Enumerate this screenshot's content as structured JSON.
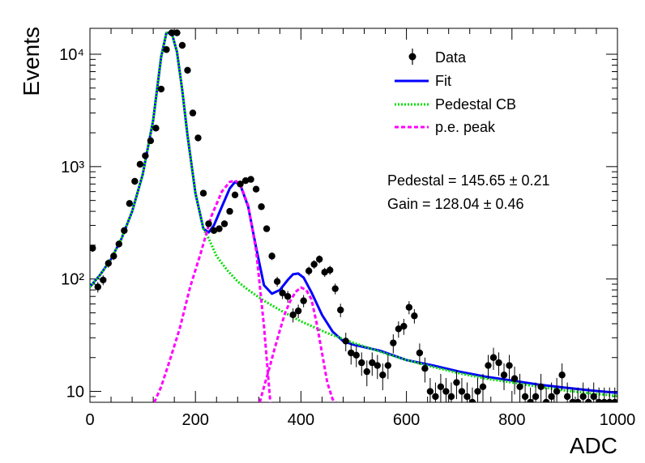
{
  "chart_data": {
    "type": "scatter",
    "title": "",
    "xlabel": "ADC",
    "ylabel": "Events",
    "xlim": [
      0,
      1000
    ],
    "ylim": [
      8,
      17000
    ],
    "yscale": "log",
    "x_ticks": [
      0,
      200,
      400,
      600,
      800,
      1000
    ],
    "y_ticks": [
      {
        "value": 10,
        "label": "10"
      },
      {
        "value": 100,
        "label": "10²"
      },
      {
        "value": 1000,
        "label": "10³"
      },
      {
        "value": 10000,
        "label": "10⁴"
      }
    ],
    "legend": {
      "position": "top-right",
      "entries": [
        {
          "label": "Data",
          "style": "marker",
          "color": "#000000"
        },
        {
          "label": "Fit",
          "style": "solid",
          "color": "#0000ff"
        },
        {
          "label": "Pedestal CB",
          "style": "dotted",
          "color": "#00dd00"
        },
        {
          "label": "p.e. peak",
          "style": "dashed",
          "color": "#ff00ff"
        }
      ]
    },
    "annotations": [
      {
        "text": "Pedestal = 145.65 ± 0.21"
      },
      {
        "text": "Gain = 128.04 ± 0.46"
      }
    ],
    "series": [
      {
        "name": "Data",
        "kind": "points",
        "color": "#000000",
        "x": [
          5,
          15,
          25,
          35,
          45,
          55,
          65,
          75,
          85,
          95,
          105,
          115,
          125,
          135,
          145,
          155,
          165,
          175,
          185,
          195,
          205,
          215,
          225,
          235,
          245,
          255,
          265,
          275,
          285,
          295,
          305,
          315,
          325,
          335,
          345,
          355,
          365,
          375,
          385,
          395,
          405,
          415,
          425,
          435,
          445,
          455,
          465,
          475,
          485,
          495,
          505,
          515,
          525,
          535,
          545,
          555,
          565,
          575,
          585,
          595,
          605,
          615,
          625,
          635,
          645,
          655,
          665,
          675,
          685,
          695,
          705,
          715,
          725,
          735,
          745,
          755,
          765,
          775,
          785,
          795,
          805,
          815,
          825,
          835,
          845,
          855,
          865,
          875,
          885,
          895,
          905,
          915,
          925,
          935,
          945,
          955,
          965,
          975,
          985,
          995
        ],
        "y": [
          188,
          85,
          98,
          138,
          160,
          205,
          270,
          470,
          740,
          1050,
          1250,
          1700,
          2200,
          4900,
          11000,
          15500,
          15500,
          12000,
          7200,
          3000,
          1800,
          580,
          310,
          270,
          280,
          310,
          400,
          560,
          700,
          750,
          770,
          630,
          440,
          280,
          160,
          95,
          75,
          70,
          48,
          52,
          64,
          118,
          135,
          150,
          115,
          120,
          82,
          53,
          28,
          22,
          21,
          18,
          15,
          18,
          17,
          14,
          17,
          27,
          36,
          38,
          56,
          47,
          22,
          16,
          10,
          9,
          11,
          10,
          9,
          12,
          10,
          9,
          8,
          10,
          11,
          17,
          20,
          18,
          14,
          17,
          13,
          11,
          9,
          8,
          9,
          11,
          8,
          9,
          10,
          14,
          9,
          8,
          8,
          9,
          8,
          9,
          8,
          8,
          8,
          8
        ]
      },
      {
        "name": "Fit",
        "kind": "curve",
        "color": "#0000ff",
        "x": [
          0,
          20,
          40,
          60,
          80,
          100,
          120,
          135,
          145,
          155,
          165,
          175,
          185,
          200,
          215,
          225,
          235,
          250,
          265,
          275,
          285,
          300,
          315,
          330,
          345,
          360,
          375,
          385,
          395,
          405,
          420,
          440,
          460,
          480,
          500,
          550,
          600,
          650,
          700,
          750,
          800,
          850,
          900,
          950,
          1000
        ],
        "y": [
          85,
          110,
          150,
          230,
          400,
          850,
          2600,
          9500,
          15500,
          15500,
          10500,
          4800,
          1900,
          580,
          280,
          260,
          300,
          440,
          640,
          730,
          690,
          440,
          190,
          88,
          74,
          80,
          98,
          110,
          112,
          103,
          76,
          48,
          34,
          28,
          26,
          23,
          19,
          17,
          15,
          13.5,
          12.5,
          11.5,
          10.8,
          10.2,
          9.7
        ]
      },
      {
        "name": "Pedestal CB",
        "kind": "curve",
        "color": "#00dd00",
        "x": [
          0,
          20,
          40,
          60,
          80,
          100,
          120,
          135,
          145,
          155,
          165,
          175,
          185,
          200,
          215,
          225,
          240,
          260,
          280,
          300,
          330,
          360,
          400,
          450,
          500,
          550,
          600,
          650,
          700,
          750,
          800,
          850,
          900,
          950,
          1000
        ],
        "y": [
          85,
          110,
          150,
          230,
          400,
          850,
          2600,
          9500,
          15500,
          15500,
          10500,
          4800,
          1900,
          580,
          280,
          230,
          160,
          120,
          95,
          80,
          64,
          53,
          42,
          33,
          27,
          22.5,
          19,
          16.5,
          14.5,
          13,
          12,
          11,
          10.2,
          9.6,
          9.1
        ]
      },
      {
        "name": "p.e. peak",
        "kind": "curve",
        "color": "#ff00ff",
        "segments": [
          {
            "x": [
              122,
              135,
              150,
              170,
              190,
              210,
              230,
              250,
              265,
              275,
              285,
              300,
              315,
              330,
              342
            ],
            "y": [
              8,
              11,
              18,
              36,
              85,
              170,
              360,
              600,
              730,
              750,
              700,
              450,
              180,
              38,
              8
            ]
          },
          {
            "x": [
              322,
              330,
              340,
              350,
              360,
              370,
              380,
              390,
              400,
              410,
              420,
              430,
              440,
              450,
              460,
              466
            ],
            "y": [
              8,
              11,
              16,
              24,
              35,
              50,
              64,
              77,
              84,
              80,
              66,
              40,
              22,
              12,
              8.5,
              8
            ]
          }
        ]
      }
    ]
  }
}
